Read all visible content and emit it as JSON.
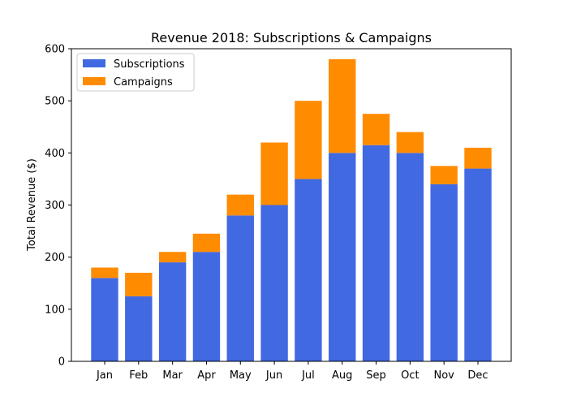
{
  "chart_data": {
    "type": "bar",
    "stacked": true,
    "title": "Revenue 2018: Subscriptions & Campaigns",
    "xlabel": "",
    "ylabel": "Total Revenue ($)",
    "ylim": [
      0,
      600
    ],
    "yticks": [
      0,
      100,
      200,
      300,
      400,
      500,
      600
    ],
    "grid": false,
    "legend_position": "top-left",
    "categories": [
      "Jan",
      "Feb",
      "Mar",
      "Apr",
      "May",
      "Jun",
      "Jul",
      "Aug",
      "Sep",
      "Oct",
      "Nov",
      "Dec"
    ],
    "series": [
      {
        "name": "Subscriptions",
        "color": "#4169e1",
        "values": [
          160,
          125,
          190,
          210,
          280,
          300,
          350,
          400,
          415,
          400,
          340,
          370
        ]
      },
      {
        "name": "Campaigns",
        "color": "#ff8c00",
        "values": [
          20,
          45,
          20,
          35,
          40,
          120,
          150,
          180,
          60,
          40,
          35,
          40
        ]
      }
    ]
  }
}
